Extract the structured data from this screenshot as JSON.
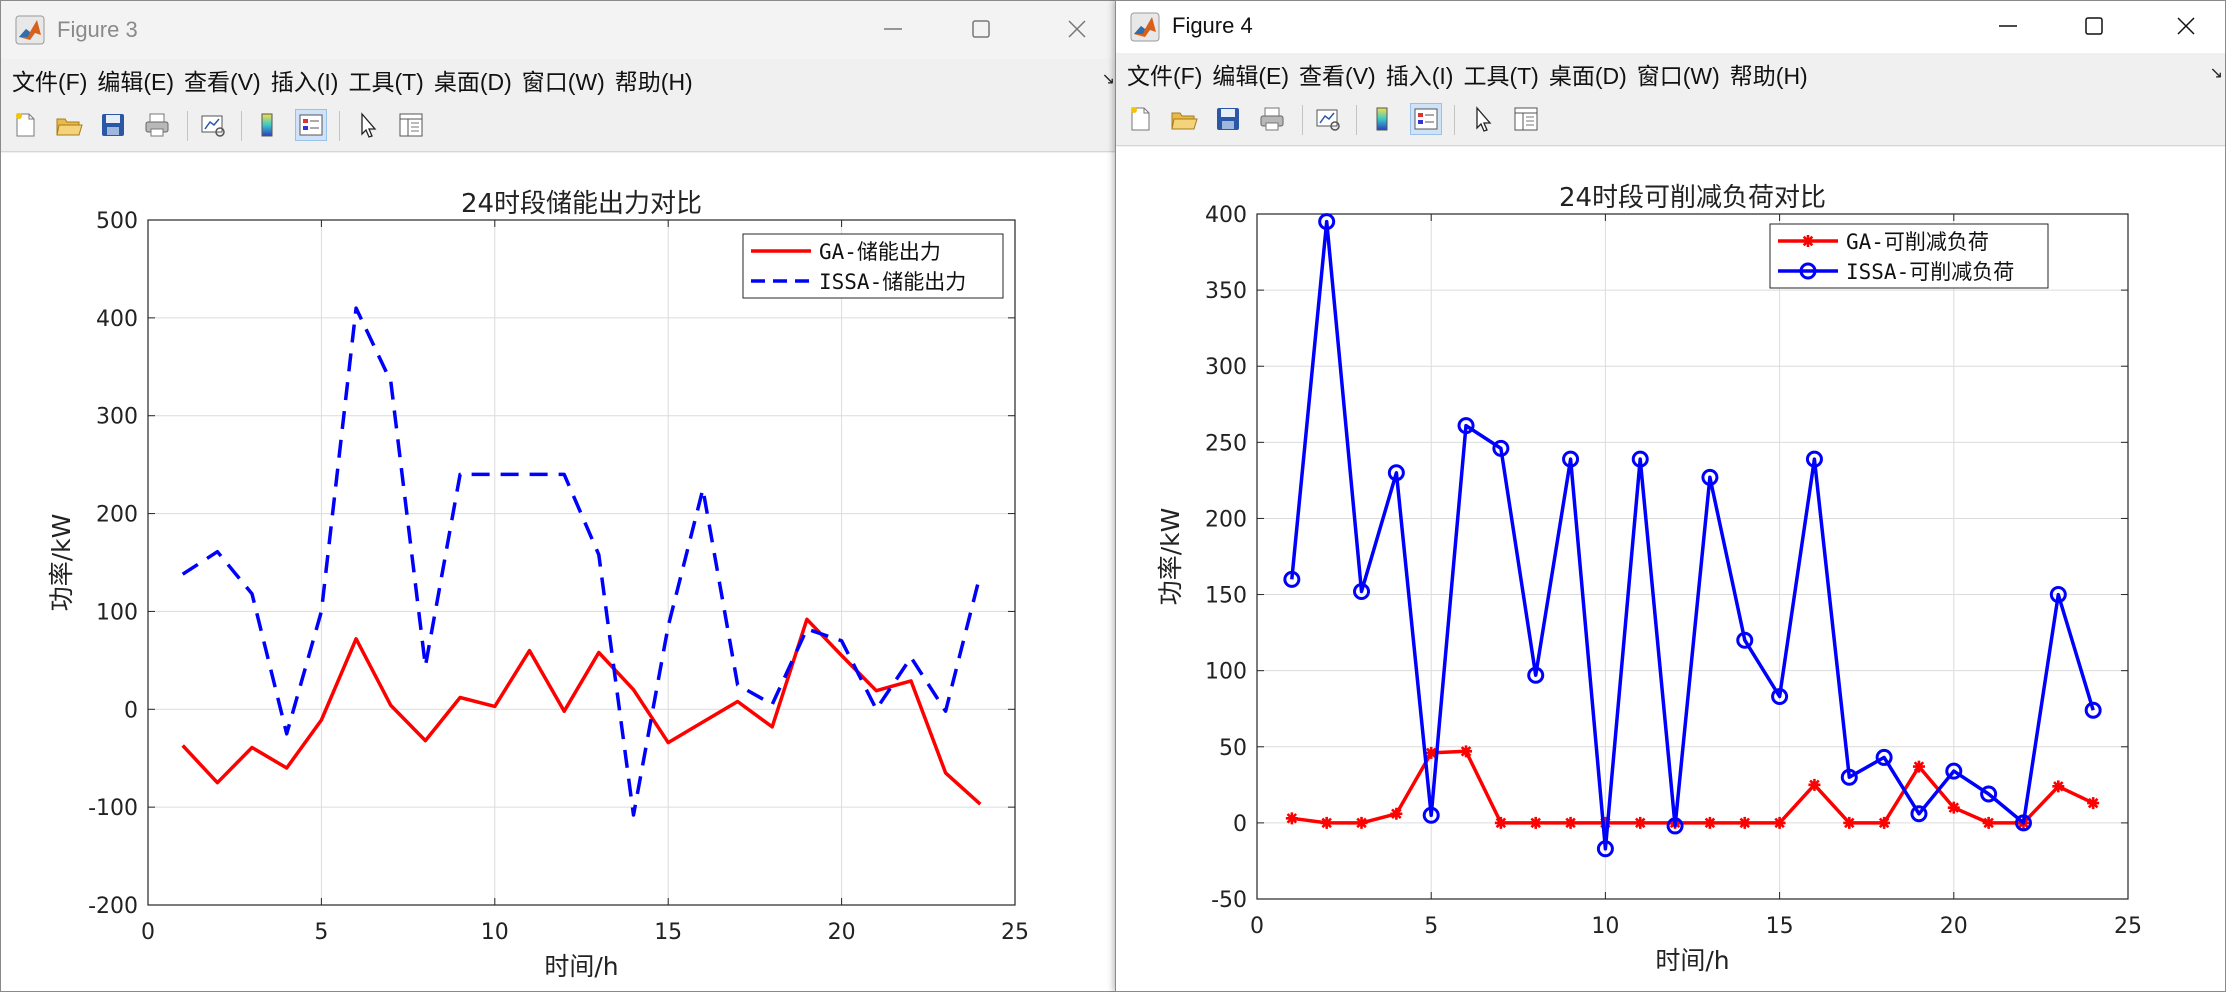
{
  "windows": [
    {
      "id": "win3",
      "title": "Figure 3",
      "active": false,
      "menu": [
        "文件(F)",
        "编辑(E)",
        "查看(V)",
        "插入(I)",
        "工具(T)",
        "桌面(D)",
        "窗口(W)",
        "帮助(H)"
      ],
      "toolbar": [
        "new-figure",
        "open-file",
        "save",
        "print",
        "link-plot",
        "colorbar",
        "legend",
        "pointer",
        "property-inspector"
      ]
    },
    {
      "id": "win4",
      "title": "Figure 4",
      "active": true,
      "menu": [
        "文件(F)",
        "编辑(E)",
        "查看(V)",
        "插入(I)",
        "工具(T)",
        "桌面(D)",
        "窗口(W)",
        "帮助(H)"
      ],
      "toolbar": [
        "new-figure",
        "open-file",
        "save",
        "print",
        "link-plot",
        "colorbar",
        "legend",
        "pointer",
        "property-inspector"
      ]
    }
  ],
  "chart_data": [
    {
      "type": "line",
      "title": "24时段储能出力对比",
      "xlabel": "时间/h",
      "ylabel": "功率/kW",
      "xlim": [
        0,
        25
      ],
      "ylim": [
        -200,
        500
      ],
      "xticks": [
        0,
        5,
        10,
        15,
        20,
        25
      ],
      "yticks": [
        -200,
        -100,
        0,
        100,
        200,
        300,
        400,
        500
      ],
      "grid": true,
      "legend_position": "top-right",
      "x": [
        1,
        2,
        3,
        4,
        5,
        6,
        7,
        8,
        9,
        10,
        11,
        12,
        13,
        14,
        15,
        16,
        17,
        18,
        19,
        20,
        21,
        22,
        23,
        24
      ],
      "series": [
        {
          "name": "GA-储能出力",
          "color": "#ff0000",
          "style": "solid",
          "marker": "none",
          "values": [
            -37,
            -75,
            -39,
            -60,
            -11,
            72,
            4,
            -32,
            12,
            3,
            60,
            -2,
            58,
            20,
            -34,
            -13,
            8,
            -18,
            92,
            55,
            19,
            29,
            -65,
            -97
          ]
        },
        {
          "name": "ISSA-储能出力",
          "color": "#0000ff",
          "style": "dashed",
          "marker": "none",
          "values": [
            138,
            161,
            118,
            -25,
            100,
            410,
            335,
            44,
            240,
            240,
            240,
            240,
            158,
            -108,
            85,
            225,
            25,
            5,
            82,
            70,
            0,
            53,
            -2,
            138
          ]
        }
      ]
    },
    {
      "type": "line",
      "title": "24时段可削减负荷对比",
      "xlabel": "时间/h",
      "ylabel": "功率/kW",
      "xlim": [
        0,
        25
      ],
      "ylim": [
        -50,
        400
      ],
      "xticks": [
        0,
        5,
        10,
        15,
        20,
        25
      ],
      "yticks": [
        -50,
        0,
        50,
        100,
        150,
        200,
        250,
        300,
        350,
        400
      ],
      "grid": true,
      "legend_position": "top-right",
      "x": [
        1,
        2,
        3,
        4,
        5,
        6,
        7,
        8,
        9,
        10,
        11,
        12,
        13,
        14,
        15,
        16,
        17,
        18,
        19,
        20,
        21,
        22,
        23,
        24
      ],
      "series": [
        {
          "name": "GA-可削减负荷",
          "color": "#ff0000",
          "style": "solid",
          "marker": "asterisk",
          "values": [
            3,
            0,
            0,
            6,
            46,
            47,
            0,
            0,
            0,
            0,
            0,
            0,
            0,
            0,
            0,
            25,
            0,
            0,
            37,
            10,
            0,
            0,
            24,
            13
          ]
        },
        {
          "name": "ISSA-可削减负荷",
          "color": "#0000ff",
          "style": "solid",
          "marker": "circle",
          "values": [
            160,
            395,
            152,
            230,
            5,
            261,
            246,
            97,
            239,
            -17,
            239,
            -2,
            227,
            120,
            83,
            239,
            30,
            43,
            6,
            34,
            19,
            0,
            150,
            74
          ]
        }
      ]
    }
  ]
}
